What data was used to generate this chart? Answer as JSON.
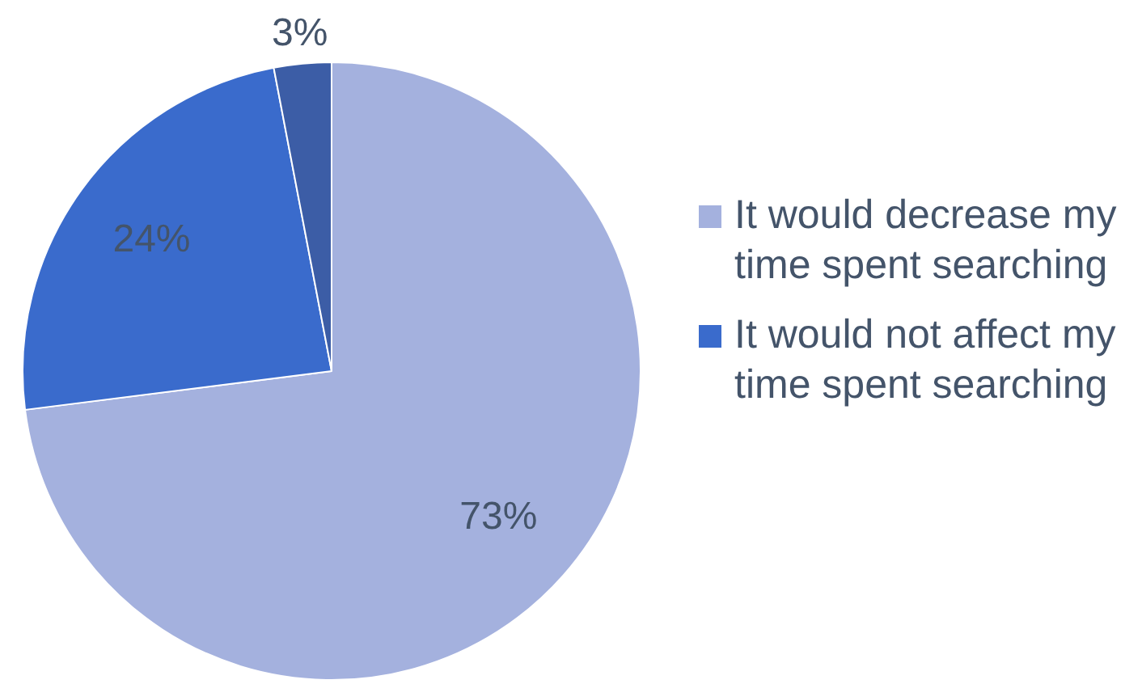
{
  "chart_data": {
    "type": "pie",
    "categories": [
      "It would decrease my time spent searching",
      "It would not affect my time spent searching",
      null
    ],
    "values": [
      73,
      24,
      3
    ],
    "colors": [
      "#a4b1de",
      "#3a6bcc",
      "#3c5da6"
    ],
    "value_labels": [
      "73%",
      "24%",
      "3%"
    ],
    "legend": "right"
  }
}
